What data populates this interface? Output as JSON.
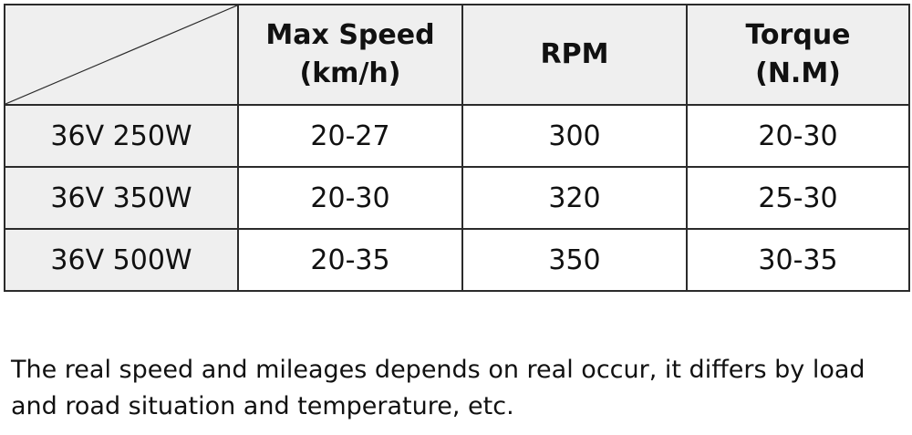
{
  "table": {
    "headers": [
      {
        "line1": "Max Speed",
        "line2": "(km/h)"
      },
      {
        "line1": "RPM",
        "line2": ""
      },
      {
        "line1": "Torque",
        "line2": "(N.M)"
      }
    ],
    "rows": [
      {
        "label": "36V 250W",
        "speed": "20-27",
        "rpm": "300",
        "torque": "20-30"
      },
      {
        "label": "36V 350W",
        "speed": "20-30",
        "rpm": "320",
        "torque": "25-30"
      },
      {
        "label": "36V 500W",
        "speed": "20-35",
        "rpm": "350",
        "torque": "30-35"
      }
    ]
  },
  "note": {
    "line1": "The real speed and mileages depends on real occur, it differs by load",
    "line2": "and road situation and temperature, etc."
  }
}
